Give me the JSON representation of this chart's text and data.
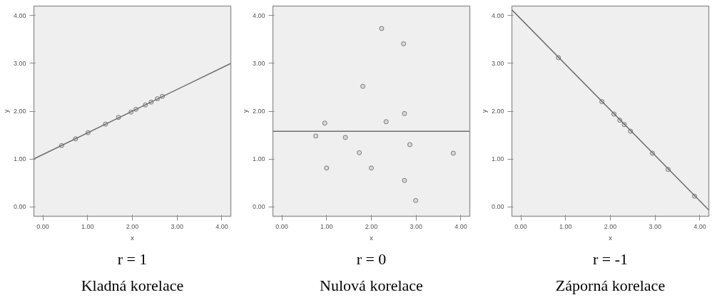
{
  "chart_data": [
    {
      "type": "scatter",
      "title": "r = 1",
      "subtitle": "Kladná korelace",
      "xlabel": "x",
      "ylabel": "y",
      "xlim": [
        -0.2,
        4.2
      ],
      "ylim": [
        -0.2,
        4.2
      ],
      "xticks": [
        {
          "value": 0,
          "label": "0.00"
        },
        {
          "value": 1,
          "label": "1.00"
        },
        {
          "value": 2,
          "label": "2.00"
        },
        {
          "value": 3,
          "label": "3.00"
        },
        {
          "value": 4,
          "label": "4.00"
        }
      ],
      "yticks": [
        {
          "value": 0,
          "label": "0.00"
        },
        {
          "value": 1,
          "label": "1.00"
        },
        {
          "value": 2,
          "label": "2.00"
        },
        {
          "value": 3,
          "label": "3.00"
        },
        {
          "value": 4,
          "label": "4.00"
        }
      ],
      "marker": "circle",
      "grid": false,
      "series": [
        {
          "color": "#7a7a7a",
          "x": [
            0.42,
            0.73,
            1.01,
            1.4,
            1.69,
            1.97,
            2.08,
            2.29,
            2.42,
            2.56,
            2.67
          ],
          "values": [
            1.28,
            1.42,
            1.55,
            1.73,
            1.87,
            1.98,
            2.04,
            2.13,
            2.19,
            2.26,
            2.31
          ]
        },
        {
          "type": "line",
          "marker": "none",
          "color": "#6e6e6e",
          "x": [
            -0.2,
            4.2
          ],
          "values": [
            1.0,
            3.0
          ]
        }
      ]
    },
    {
      "type": "scatter",
      "title": "r = 0",
      "subtitle": "Nulová korelace",
      "xlabel": "x",
      "ylabel": "y",
      "xlim": [
        -0.2,
        4.2
      ],
      "ylim": [
        -0.2,
        4.2
      ],
      "xticks": [
        {
          "value": 0,
          "label": "0.00"
        },
        {
          "value": 1,
          "label": "1.00"
        },
        {
          "value": 2,
          "label": "2.00"
        },
        {
          "value": 3,
          "label": "3.00"
        },
        {
          "value": 4,
          "label": "4.00"
        }
      ],
      "yticks": [
        {
          "value": 0,
          "label": "0.00"
        },
        {
          "value": 1,
          "label": "1.00"
        },
        {
          "value": 2,
          "label": "2.00"
        },
        {
          "value": 3,
          "label": "3.00"
        },
        {
          "value": 4,
          "label": "4.00"
        }
      ],
      "marker": "circle",
      "grid": false,
      "series": [
        {
          "color": "#7a7a7a",
          "x": [
            2.23,
            2.72,
            1.81,
            2.74,
            2.33,
            0.96,
            0.76,
            1.42,
            2.86,
            1.73,
            3.83,
            1.0,
            2.0,
            2.74,
            2.99
          ],
          "values": [
            3.73,
            3.41,
            2.52,
            1.95,
            1.78,
            1.75,
            1.48,
            1.45,
            1.3,
            1.13,
            1.12,
            0.81,
            0.81,
            0.55,
            0.13
          ]
        },
        {
          "type": "line",
          "marker": "none",
          "color": "#6e6e6e",
          "x": [
            -0.2,
            4.2
          ],
          "values": [
            1.58,
            1.58
          ]
        }
      ]
    },
    {
      "type": "scatter",
      "title": "r = -1",
      "subtitle": "Záporná korelace",
      "xlabel": "x",
      "ylabel": "y",
      "xlim": [
        -0.2,
        4.2
      ],
      "ylim": [
        -0.2,
        4.2
      ],
      "xticks": [
        {
          "value": 0,
          "label": "0.00"
        },
        {
          "value": 1,
          "label": "1.00"
        },
        {
          "value": 2,
          "label": "2.00"
        },
        {
          "value": 3,
          "label": "3.00"
        },
        {
          "value": 4,
          "label": "4.00"
        }
      ],
      "yticks": [
        {
          "value": 0,
          "label": "0.00"
        },
        {
          "value": 1,
          "label": "1.00"
        },
        {
          "value": 2,
          "label": "2.00"
        },
        {
          "value": 3,
          "label": "3.00"
        },
        {
          "value": 4,
          "label": "4.00"
        }
      ],
      "marker": "circle",
      "grid": false,
      "series": [
        {
          "color": "#7a7a7a",
          "x": [
            0.84,
            1.81,
            2.08,
            2.21,
            2.31,
            2.45,
            2.94,
            3.29,
            3.88
          ],
          "values": [
            3.12,
            2.2,
            1.94,
            1.81,
            1.72,
            1.58,
            1.12,
            0.78,
            0.22
          ]
        },
        {
          "type": "line",
          "marker": "none",
          "color": "#6e6e6e",
          "x": [
            -0.2,
            4.2
          ],
          "values": [
            4.12,
            -0.07
          ]
        }
      ]
    }
  ]
}
